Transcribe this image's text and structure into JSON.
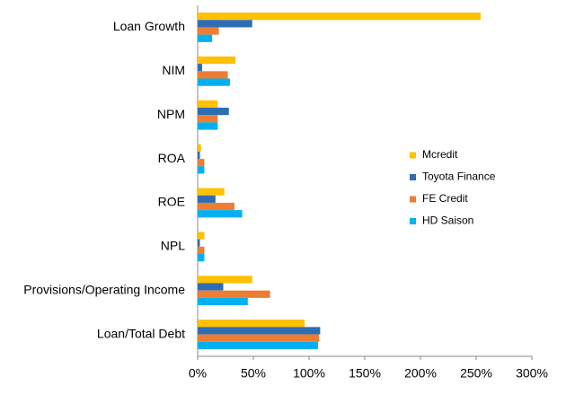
{
  "chart_data": {
    "type": "hbar",
    "categories": [
      "Loan Growth",
      "NIM",
      "NPM",
      "ROA",
      "ROE",
      "NPL",
      "Provisions/Operating Income",
      "Loan/Total Debt"
    ],
    "series": [
      {
        "name": "Mcredit",
        "color": "#ffc000",
        "values": [
          254,
          34,
          18,
          3,
          24,
          6,
          49,
          96
        ]
      },
      {
        "name": "Toyota Finance",
        "color": "#2e6db4",
        "values": [
          49,
          4,
          28,
          2,
          16,
          2,
          23,
          110
        ]
      },
      {
        "name": "FE Credit",
        "color": "#ed7d31",
        "values": [
          19,
          27,
          18,
          6,
          33,
          6,
          65,
          109
        ]
      },
      {
        "name": "HD Saison",
        "color": "#00b0f0",
        "values": [
          13,
          29,
          18,
          6,
          40,
          6,
          45,
          108
        ]
      }
    ],
    "xlim": [
      0,
      300
    ],
    "xticks": [
      {
        "value": 0,
        "label": "0%"
      },
      {
        "value": 50,
        "label": "50%"
      },
      {
        "value": 100,
        "label": "100%"
      },
      {
        "value": 150,
        "label": "150%"
      },
      {
        "value": 200,
        "label": "200%"
      },
      {
        "value": 250,
        "label": "250%"
      },
      {
        "value": 300,
        "label": "300%"
      }
    ],
    "legend": "right"
  }
}
